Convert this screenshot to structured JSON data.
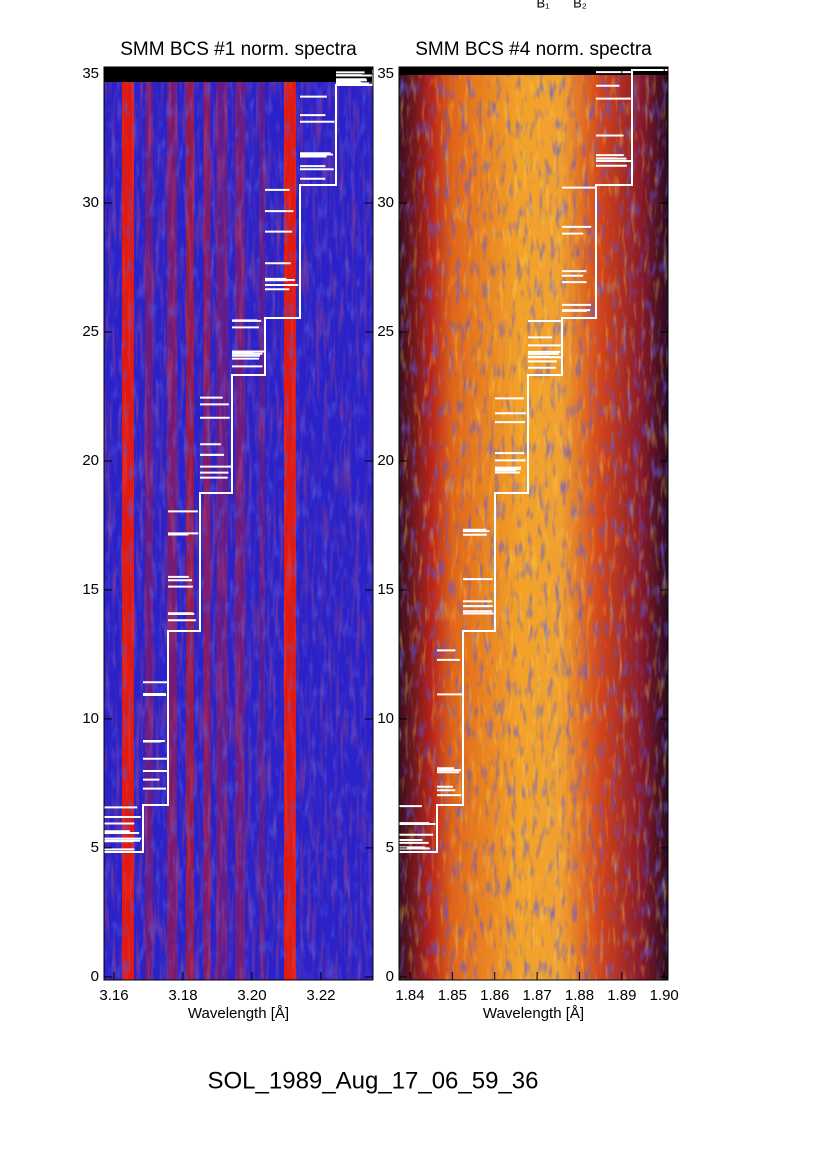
{
  "annotations": [
    "B₁",
    "B₂"
  ],
  "footer": "SOL_1989_Aug_17_06_59_36",
  "chart_data": [
    {
      "type": "image",
      "title": "SMM BCS #1 norm. spectra",
      "xlabel": "Wavelength [Å]",
      "xlim": [
        3.1571,
        3.2351
      ],
      "xticks": [
        3.16,
        3.18,
        {
          "value": 3.2,
          "label": "3.20"
        },
        3.22
      ],
      "ylim": [
        -0.12,
        35.27
      ],
      "yticks": [
        0,
        5,
        10,
        15,
        20,
        25,
        30,
        35
      ]
    },
    {
      "type": "image",
      "title": "SMM BCS #4 norm. spectra",
      "xlabel": "Wavelength [Å]",
      "xlim": [
        1.8374,
        1.9009
      ],
      "xticks": [
        1.84,
        1.85,
        1.86,
        1.87,
        1.88,
        1.89,
        {
          "value": 1.9,
          "label": "1.90"
        }
      ],
      "ylim": [
        -0.12,
        35.27
      ],
      "yticks": [
        0,
        5,
        10,
        15,
        20,
        25,
        30,
        35
      ]
    }
  ]
}
